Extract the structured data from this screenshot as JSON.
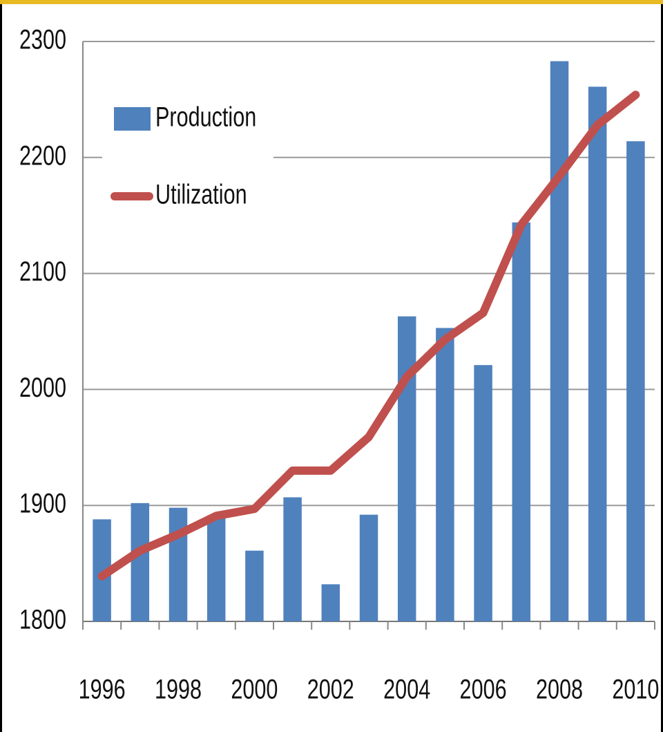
{
  "chart_data": {
    "type": "bar",
    "categories": [
      "1996",
      null,
      "1998",
      null,
      "2000",
      null,
      "2002",
      null,
      "2004",
      null,
      "2006",
      null,
      "2008",
      null,
      "2010"
    ],
    "series": [
      {
        "name": "Production",
        "type": "bar",
        "color": "#4f81bd",
        "values": [
          1888,
          1902,
          1898,
          1890,
          1861,
          1907,
          1832,
          1892,
          2063,
          2053,
          2021,
          2144,
          2283,
          2261,
          2214
        ]
      },
      {
        "name": "Utilization",
        "type": "line",
        "color": "#c0504d",
        "values": [
          1839,
          1861,
          1875,
          1891,
          1897,
          1930,
          1930,
          1959,
          2011,
          2043,
          2066,
          2142,
          2184,
          2228,
          2254
        ]
      }
    ],
    "ylim": [
      1800,
      2300
    ],
    "yticks": [
      1800,
      1900,
      2000,
      2100,
      2200,
      2300
    ],
    "grid": true,
    "legend": "upper left"
  }
}
